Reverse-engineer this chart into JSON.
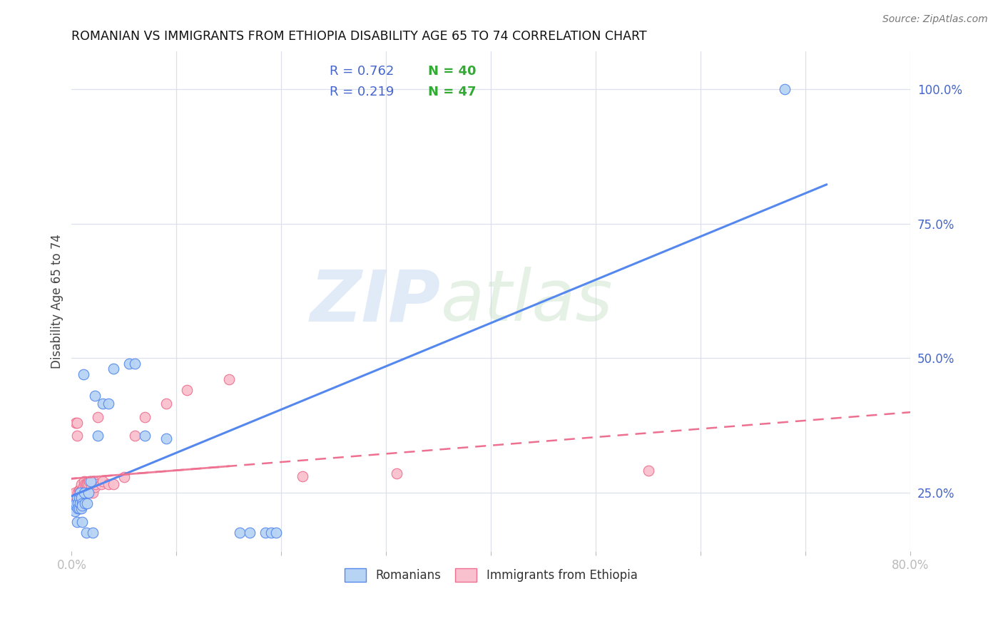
{
  "title": "ROMANIAN VS IMMIGRANTS FROM ETHIOPIA DISABILITY AGE 65 TO 74 CORRELATION CHART",
  "source": "Source: ZipAtlas.com",
  "ylabel": "Disability Age 65 to 74",
  "xlim": [
    0.0,
    0.8
  ],
  "ylim": [
    0.14,
    1.07
  ],
  "xticks": [
    0.0,
    0.1,
    0.2,
    0.3,
    0.4,
    0.5,
    0.6,
    0.7,
    0.8
  ],
  "xtick_labels": [
    "0.0%",
    "",
    "",
    "",
    "",
    "",
    "",
    "",
    "80.0%"
  ],
  "ytick_labels_right": [
    "25.0%",
    "50.0%",
    "75.0%",
    "100.0%"
  ],
  "yticks_right": [
    0.25,
    0.5,
    0.75,
    1.0
  ],
  "background_color": "#ffffff",
  "grid_color": "#dde0ea",
  "romanian_color": "#b8d4f5",
  "ethiopian_color": "#f9c0ce",
  "line_romanian_color": "#5588ee",
  "line_ethiopian_color": "#ee7090",
  "r_color": "#4466cc",
  "n_color": "#33aa33",
  "watermark_zip": "ZIP",
  "watermark_atlas": "atlas",
  "romanians_x": [
    0.002,
    0.003,
    0.004,
    0.004,
    0.005,
    0.005,
    0.006,
    0.006,
    0.007,
    0.007,
    0.008,
    0.008,
    0.009,
    0.009,
    0.01,
    0.01,
    0.01,
    0.011,
    0.012,
    0.013,
    0.014,
    0.015,
    0.016,
    0.018,
    0.02,
    0.022,
    0.025,
    0.03,
    0.035,
    0.04,
    0.055,
    0.06,
    0.07,
    0.09,
    0.16,
    0.17,
    0.185,
    0.19,
    0.195,
    0.68
  ],
  "romanians_y": [
    0.22,
    0.215,
    0.225,
    0.23,
    0.24,
    0.195,
    0.23,
    0.22,
    0.24,
    0.22,
    0.23,
    0.25,
    0.22,
    0.24,
    0.23,
    0.225,
    0.195,
    0.47,
    0.25,
    0.23,
    0.175,
    0.23,
    0.25,
    0.27,
    0.175,
    0.43,
    0.355,
    0.415,
    0.415,
    0.48,
    0.49,
    0.49,
    0.355,
    0.35,
    0.175,
    0.175,
    0.175,
    0.175,
    0.175,
    1.0
  ],
  "ethiopians_x": [
    0.002,
    0.003,
    0.004,
    0.004,
    0.005,
    0.005,
    0.006,
    0.006,
    0.007,
    0.007,
    0.008,
    0.008,
    0.008,
    0.009,
    0.009,
    0.009,
    0.01,
    0.01,
    0.011,
    0.011,
    0.012,
    0.013,
    0.014,
    0.015,
    0.015,
    0.016,
    0.017,
    0.018,
    0.019,
    0.02,
    0.021,
    0.022,
    0.023,
    0.025,
    0.028,
    0.03,
    0.035,
    0.04,
    0.05,
    0.06,
    0.07,
    0.09,
    0.11,
    0.15,
    0.22,
    0.31,
    0.55
  ],
  "ethiopians_y": [
    0.23,
    0.25,
    0.22,
    0.38,
    0.38,
    0.355,
    0.22,
    0.25,
    0.23,
    0.255,
    0.22,
    0.255,
    0.24,
    0.23,
    0.255,
    0.265,
    0.23,
    0.255,
    0.24,
    0.26,
    0.27,
    0.265,
    0.265,
    0.255,
    0.265,
    0.265,
    0.27,
    0.25,
    0.26,
    0.25,
    0.27,
    0.26,
    0.265,
    0.39,
    0.265,
    0.27,
    0.265,
    0.265,
    0.278,
    0.355,
    0.39,
    0.415,
    0.44,
    0.46,
    0.28,
    0.285,
    0.29
  ]
}
